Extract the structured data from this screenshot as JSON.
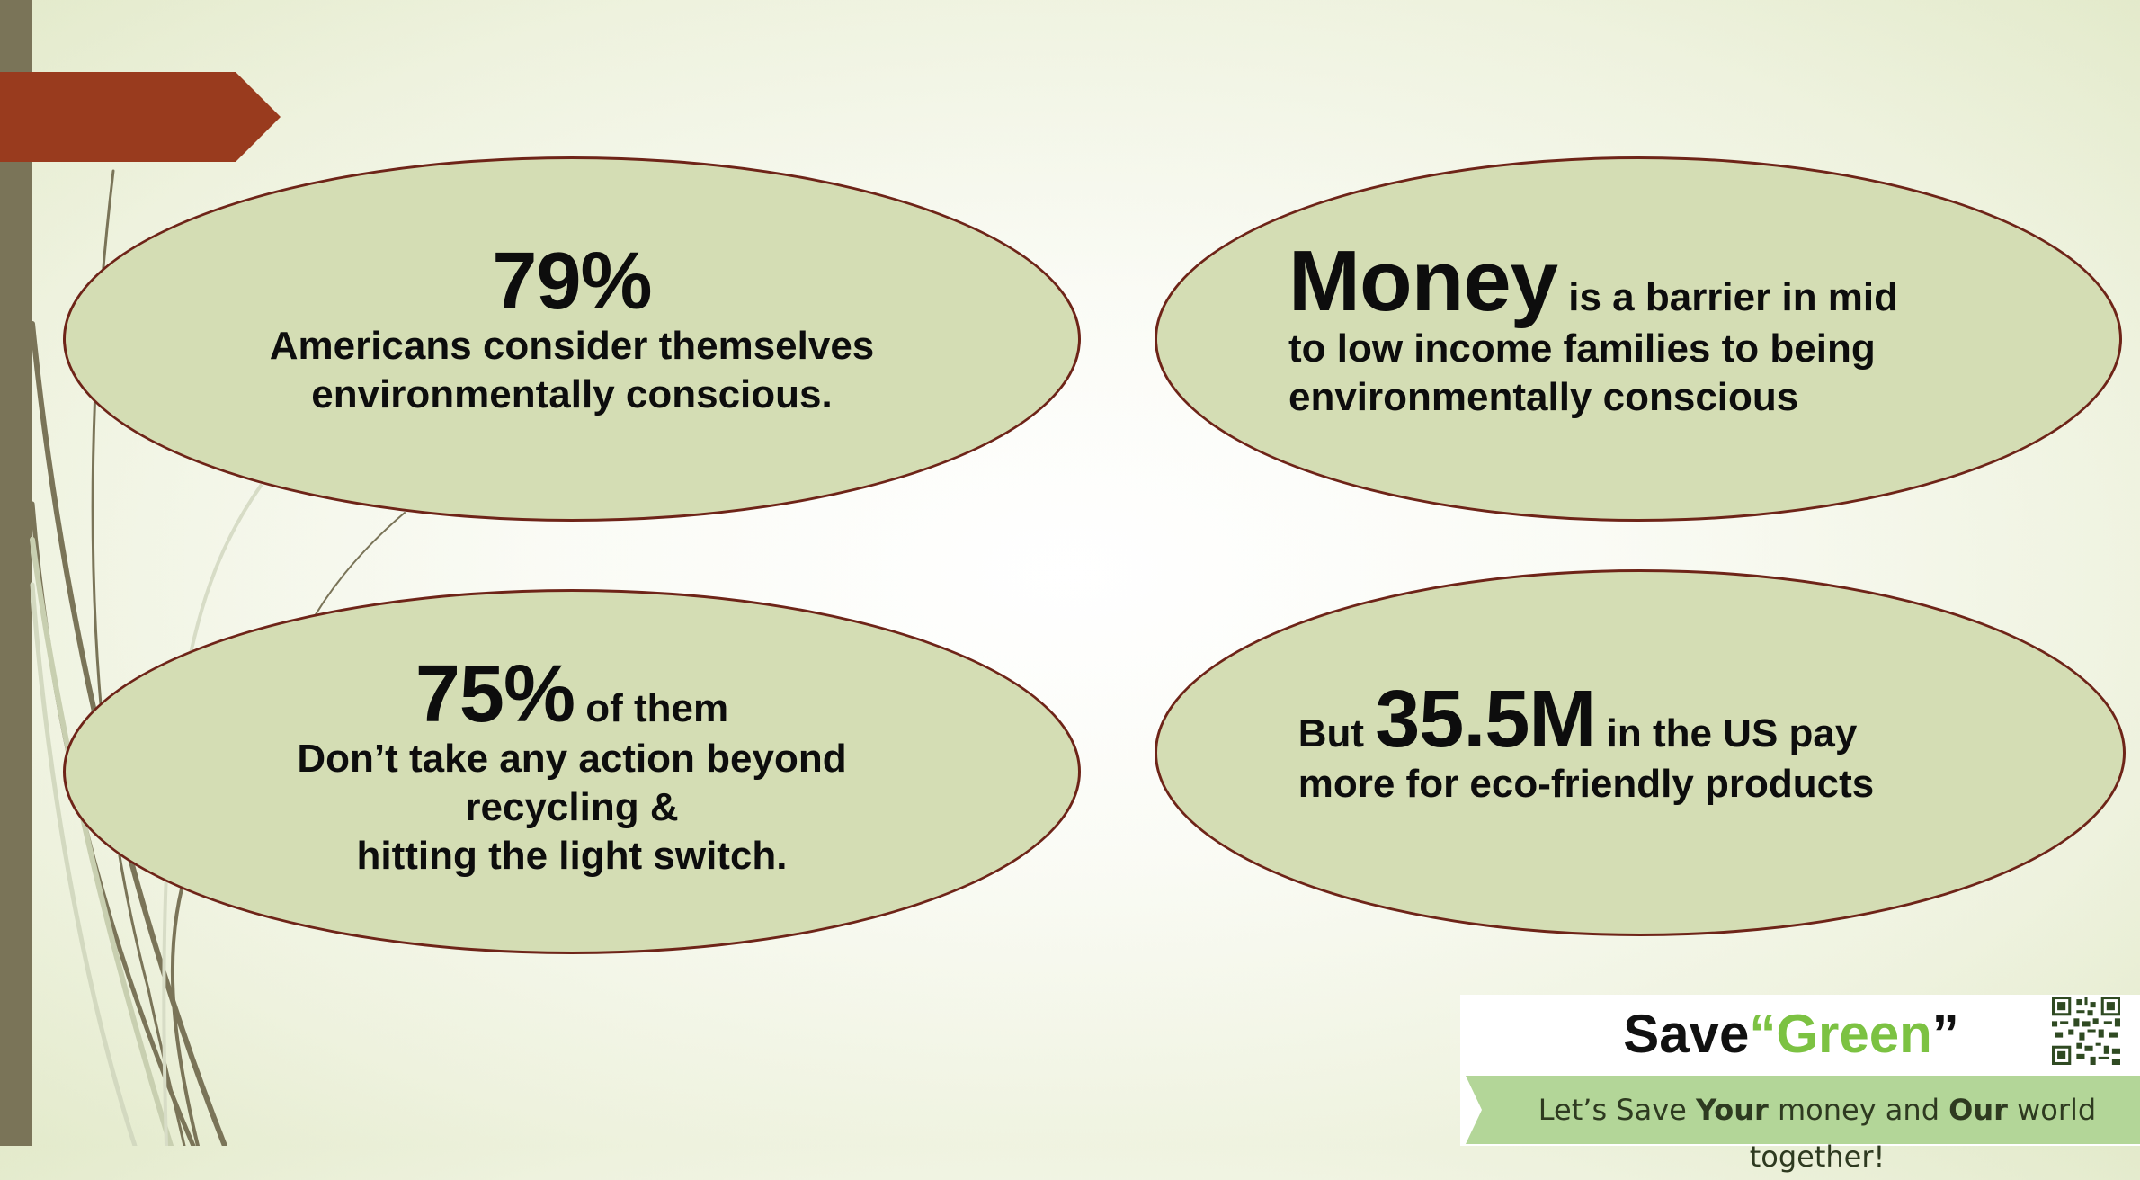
{
  "stats": {
    "s1": {
      "big": "79%",
      "line1": "Americans consider themselves",
      "line2": "environmentally conscious."
    },
    "s2": {
      "big": "Money",
      "rest1": " is a barrier in mid",
      "line2": "to low income families to being",
      "line3": "environmentally conscious"
    },
    "s3": {
      "big": "75%",
      "suffix": " of them",
      "line1": "Don’t take any action beyond",
      "line2": "recycling &",
      "line3": "hitting the light switch."
    },
    "s4": {
      "prefix": "But ",
      "big": "35.5M",
      "rest1": " in the US pay",
      "line2": "more for eco-friendly products"
    }
  },
  "logo": {
    "word1": "Save",
    "open_quote": "“",
    "word2": "Green",
    "close_quote": "”",
    "tag_1": "Let’s Save ",
    "tag_2": "Your",
    "tag_3": " money and ",
    "tag_4": "Our",
    "tag_5": " world together!"
  },
  "icons": {
    "qr": "qr-code-icon",
    "flag": "flag-shape"
  },
  "colors": {
    "ellipse_fill": "#d4ddb4",
    "ellipse_border": "#6e2418",
    "flag": "#993b1e",
    "sidebar": "#7a7458",
    "brand_green": "#7cc242"
  }
}
